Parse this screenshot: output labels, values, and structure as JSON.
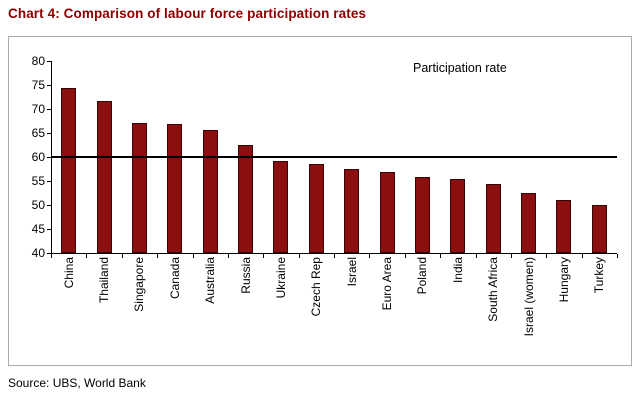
{
  "chart_data": {
    "type": "bar",
    "title": "Chart 4: Comparison of labour force participation rates",
    "annotation": "Participation rate",
    "source": "Source: UBS, World Bank",
    "categories": [
      "China",
      "Thailand",
      "Singapore",
      "Canada",
      "Australia",
      "Russia",
      "Ukraine",
      "Czech Rep",
      "Israel",
      "Euro Area",
      "Poland",
      "India",
      "South Africa",
      "Israel (women)",
      "Hungary",
      "Turkey"
    ],
    "values": [
      74.3,
      71.7,
      67.0,
      66.8,
      65.6,
      62.6,
      59.2,
      58.6,
      57.4,
      56.9,
      55.9,
      55.5,
      54.4,
      52.6,
      51.0,
      49.9
    ],
    "ylim": [
      40,
      80
    ],
    "ytick_step": 5,
    "reference_line": 60,
    "bar_color": "#8B0F0F",
    "title_color": "#8B0000",
    "xlabel": "",
    "ylabel": "",
    "legend": "none",
    "grid": "off"
  }
}
